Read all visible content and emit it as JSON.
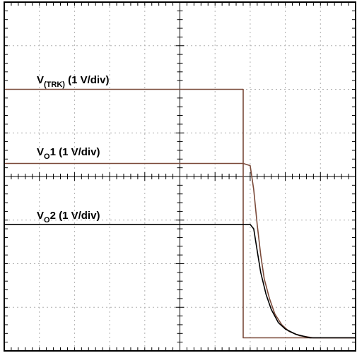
{
  "chart_data": {
    "type": "line",
    "title": "",
    "xlabel": "",
    "ylabel": "",
    "grid": true,
    "xlim": [
      0,
      10
    ],
    "ylim": [
      -4,
      4
    ],
    "series": [
      {
        "name_parts": [
          "V",
          "(TRK)",
          " (1 V/div)"
        ],
        "color": "#7a4a3a",
        "points": [
          [
            0,
            2.0
          ],
          [
            6.8,
            2.0
          ],
          [
            6.8,
            -3.7
          ],
          [
            10,
            -3.7
          ]
        ]
      },
      {
        "name_parts": [
          "V",
          "O",
          "1 (1 V/div)"
        ],
        "color": "#7a4a3a",
        "points": [
          [
            0,
            0.3
          ],
          [
            6.8,
            0.3
          ],
          [
            7.0,
            0.25
          ],
          [
            7.1,
            -0.3
          ],
          [
            7.2,
            -1.1
          ],
          [
            7.3,
            -1.8
          ],
          [
            7.4,
            -2.35
          ],
          [
            7.55,
            -2.8
          ],
          [
            7.7,
            -3.15
          ],
          [
            7.9,
            -3.4
          ],
          [
            8.1,
            -3.55
          ],
          [
            8.4,
            -3.65
          ],
          [
            8.8,
            -3.7
          ],
          [
            10,
            -3.7
          ]
        ]
      },
      {
        "name_parts": [
          "V",
          "O",
          "2 (1 V/div)"
        ],
        "color": "#000000",
        "points": [
          [
            0,
            -1.1
          ],
          [
            7.0,
            -1.1
          ],
          [
            7.1,
            -1.2
          ],
          [
            7.2,
            -1.7
          ],
          [
            7.3,
            -2.2
          ],
          [
            7.45,
            -2.7
          ],
          [
            7.6,
            -3.05
          ],
          [
            7.8,
            -3.35
          ],
          [
            8.0,
            -3.5
          ],
          [
            8.3,
            -3.62
          ],
          [
            8.7,
            -3.7
          ],
          [
            10,
            -3.7
          ]
        ]
      }
    ]
  }
}
